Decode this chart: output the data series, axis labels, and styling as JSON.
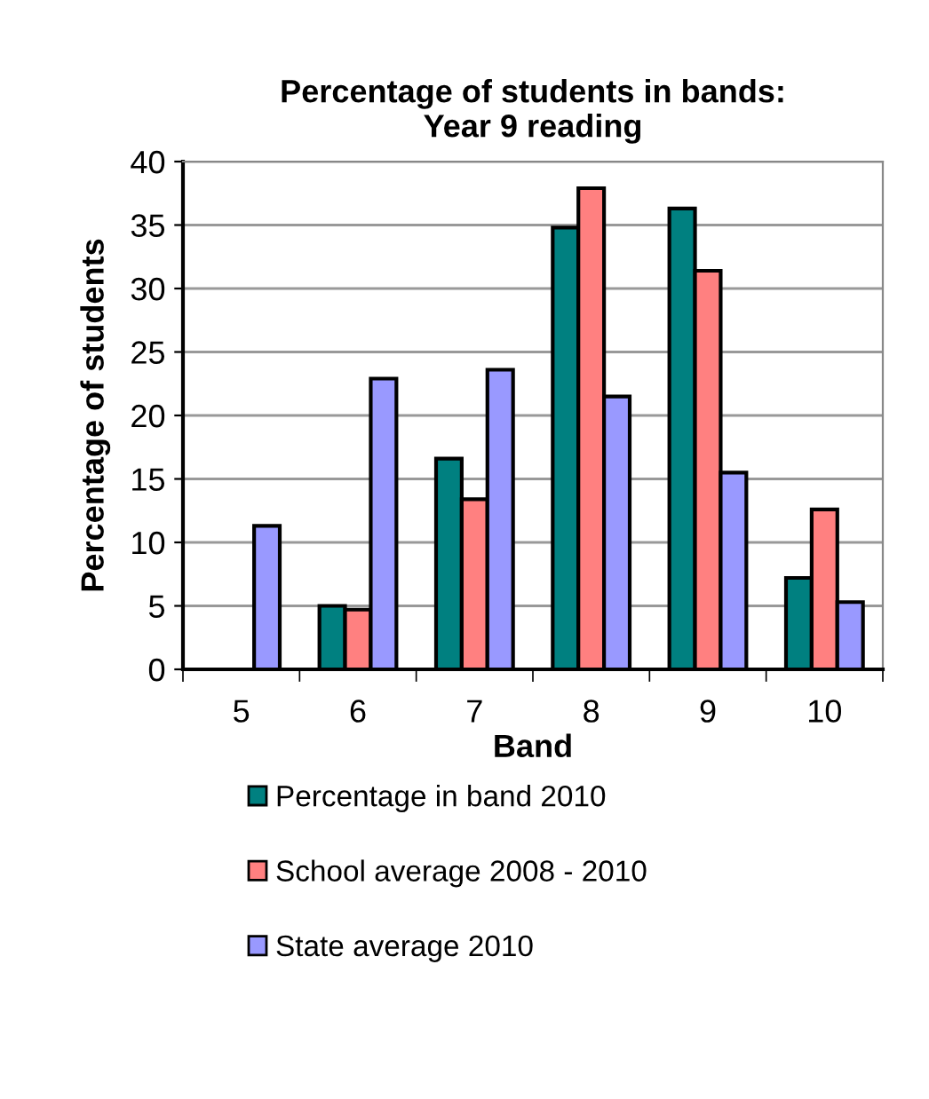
{
  "chart_data": {
    "type": "bar",
    "title": "Percentage of students in bands:\nYear 9 reading",
    "xlabel": "Band",
    "ylabel": "Percentage of students",
    "categories": [
      "5",
      "6",
      "7",
      "8",
      "9",
      "10"
    ],
    "series": [
      {
        "name": "Percentage in band 2010",
        "color": "#008080",
        "values": [
          null,
          5.0,
          16.6,
          34.8,
          36.3,
          7.2
        ]
      },
      {
        "name": "School average 2008 - 2010",
        "color": "#ff8080",
        "values": [
          null,
          4.7,
          13.4,
          37.9,
          31.4,
          12.6
        ]
      },
      {
        "name": "State average 2010",
        "color": "#9999ff",
        "values": [
          11.3,
          22.9,
          23.6,
          21.5,
          15.5,
          5.3
        ]
      }
    ],
    "ylim": [
      0,
      40
    ],
    "yticks": [
      0,
      5,
      10,
      15,
      20,
      25,
      30,
      35,
      40
    ],
    "grid": "y",
    "legend": "bottom"
  }
}
